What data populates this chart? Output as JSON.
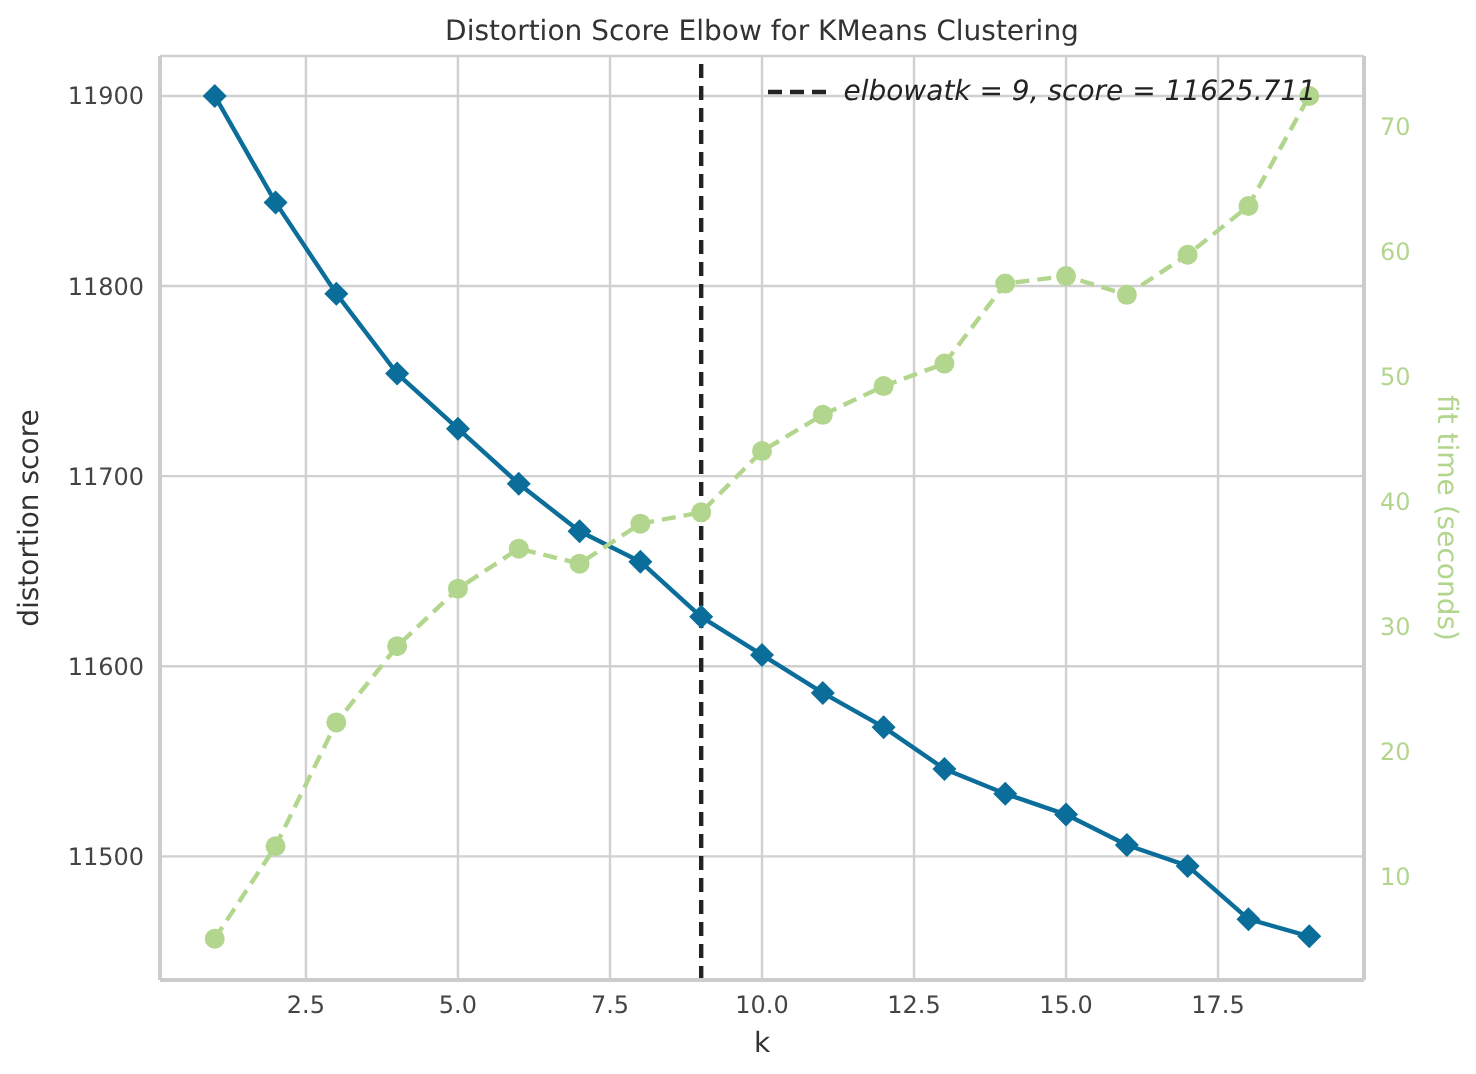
{
  "chart_data": {
    "type": "line",
    "title": "Distortion Score Elbow for KMeans Clustering",
    "xlabel": "k",
    "ylabel": "distortion score",
    "y2label": "fit time (seconds)",
    "x": [
      1,
      2,
      3,
      4,
      5,
      6,
      7,
      8,
      9,
      10,
      11,
      12,
      13,
      14,
      15,
      16,
      17,
      18,
      19
    ],
    "series": [
      {
        "color": "#0b6e9a",
        "marker": "diamond",
        "line_style": "solid",
        "values": [
          11900,
          11844,
          11796,
          11754,
          11725,
          11696,
          11671,
          11655,
          11626,
          11606,
          11586,
          11568,
          11546,
          11533,
          11522,
          11506,
          11495,
          11467,
          11458
        ]
      },
      {
        "color": "#b3d68f",
        "marker": "circle",
        "line_style": "dashed",
        "axis": "y2",
        "values": [
          5.0,
          12.4,
          22.3,
          28.4,
          33.0,
          36.2,
          35.0,
          38.2,
          39.1,
          44.0,
          46.9,
          49.2,
          51.0,
          57.4,
          58.0,
          56.5,
          59.7,
          63.6,
          72.4
        ]
      }
    ],
    "xlim": [
      0.1,
      19.9
    ],
    "xticks": [
      {
        "value": 2.5,
        "label": "2.5"
      },
      {
        "value": 5,
        "label": "5.0"
      },
      {
        "value": 7.5,
        "label": "7.5"
      },
      {
        "value": 10,
        "label": "10.0"
      },
      {
        "value": 12.5,
        "label": "12.5"
      },
      {
        "value": 15,
        "label": "15.0"
      },
      {
        "value": 17.5,
        "label": "17.5"
      }
    ],
    "ylim": [
      11435,
      11921
    ],
    "yticks": [
      11500,
      11600,
      11700,
      11800,
      11900
    ],
    "y2lim": [
      1.7,
      75.6
    ],
    "y2ticks": [
      10,
      20,
      30,
      40,
      50,
      60,
      70
    ],
    "ref_lines": [
      {
        "axis": "x",
        "value": 9,
        "label": "elbowatk = 9, score = 11625.711",
        "color": "#222222",
        "line_style": "dashed"
      }
    ],
    "grid": true,
    "legend": "top right"
  }
}
